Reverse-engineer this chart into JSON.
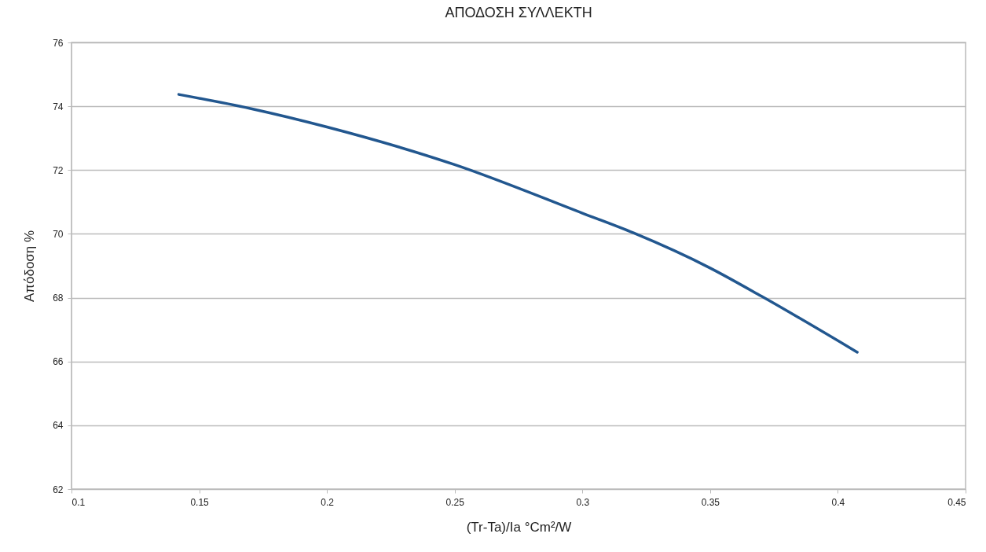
{
  "chart_data": {
    "type": "line",
    "title": "ΑΠΟΔΟΣΗ ΣΥΛΛΕΚΤΗ",
    "xlabel": "(Tr-Ta)/Ia °Cm²/W",
    "ylabel": "Απόδοση %",
    "x": [
      0.142,
      0.17,
      0.2,
      0.25,
      0.3,
      0.32,
      0.35,
      0.37,
      0.4076
    ],
    "series": [
      {
        "color": "#22578f",
        "values": [
          74.37,
          73.93,
          73.35,
          72.17,
          70.65,
          70.03,
          68.93,
          68.05,
          66.29
        ]
      }
    ],
    "xlim": [
      0.1,
      0.45
    ],
    "xticks": [
      0.1,
      0.15,
      0.2,
      0.25,
      0.3,
      0.35,
      0.4,
      0.45
    ],
    "ylim": [
      62,
      76
    ],
    "yticks": [
      62,
      64,
      66,
      68,
      70,
      72,
      74,
      76
    ],
    "grid": "y",
    "marker": "none",
    "line_style": "solid"
  }
}
